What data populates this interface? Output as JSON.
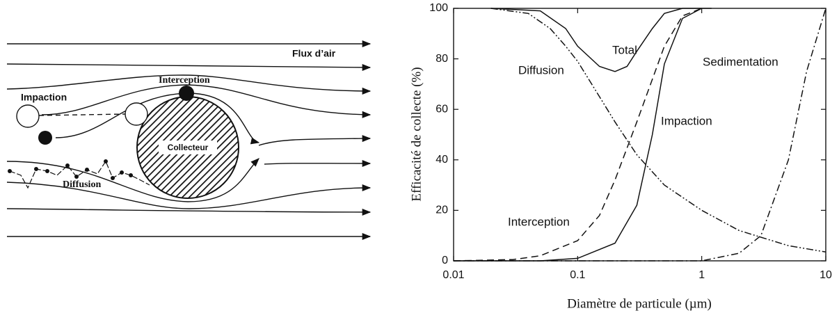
{
  "diagram": {
    "labels": {
      "flow": "Flux d’air",
      "impaction": "Impaction",
      "interception": "Interception",
      "collector": "Collecteur",
      "diffusion": "Diffusion"
    }
  },
  "chart_data": {
    "type": "line",
    "x_label": "Diamètre de particule (µm)",
    "y_label": "Efficacité de collecte (%)",
    "xlog": true,
    "xlim": [
      0.01,
      10
    ],
    "xticks": [
      0.01,
      0.1,
      1,
      10
    ],
    "ylim": [
      0,
      100
    ],
    "yticks": [
      0,
      20,
      40,
      60,
      80,
      100
    ],
    "series": [
      {
        "name": "Total",
        "color": "#111111",
        "style": "solid",
        "x": [
          0.02,
          0.05,
          0.08,
          0.1,
          0.15,
          0.2,
          0.25,
          0.3,
          0.4,
          0.5,
          0.7,
          1.2
        ],
        "values": [
          100,
          99,
          92,
          85,
          77,
          75,
          77,
          83,
          92,
          98,
          100,
          100
        ]
      },
      {
        "name": "Diffusion",
        "color": "#111111",
        "style": "dashdotdot",
        "x": [
          0.02,
          0.04,
          0.06,
          0.08,
          0.1,
          0.15,
          0.2,
          0.3,
          0.5,
          1,
          2,
          5,
          10
        ],
        "values": [
          100,
          98,
          92,
          85,
          79,
          65,
          55,
          42,
          30,
          20,
          12,
          6,
          3.5
        ]
      },
      {
        "name": "Interception",
        "color": "#111111",
        "style": "dashed",
        "x": [
          0.01,
          0.03,
          0.05,
          0.1,
          0.15,
          0.2,
          0.3,
          0.5,
          0.7,
          1
        ],
        "values": [
          0,
          0.5,
          2,
          8,
          18,
          32,
          55,
          85,
          97,
          100
        ]
      },
      {
        "name": "Impaction",
        "color": "#111111",
        "style": "solid",
        "x": [
          0.01,
          0.05,
          0.1,
          0.2,
          0.3,
          0.4,
          0.5,
          0.7,
          1
        ],
        "values": [
          0,
          0,
          1,
          7,
          22,
          50,
          78,
          96,
          100
        ]
      },
      {
        "name": "Sedimentation",
        "color": "#111111",
        "style": "dashdot",
        "x": [
          0.01,
          1,
          2,
          3,
          5,
          7,
          10
        ],
        "values": [
          0,
          0,
          3,
          10,
          40,
          75,
          100
        ]
      }
    ]
  }
}
